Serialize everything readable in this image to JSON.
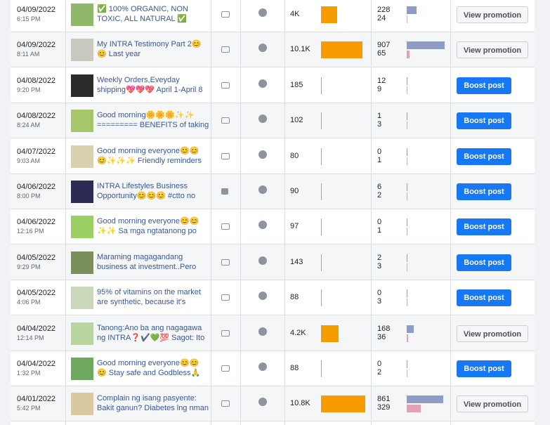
{
  "rows": [
    {
      "date": "04/09/2022",
      "time": "6:15 PM",
      "title": [
        "✅ 100% ORGANIC, NON",
        "TOXIC, ALL NATURAL ✅"
      ],
      "post_type": "photo",
      "reach": {
        "value": 4000,
        "label": "4K"
      },
      "engagement": [
        228,
        24
      ],
      "action": "View promotion"
    },
    {
      "date": "04/09/2022",
      "time": "8:11 AM",
      "title": [
        "My INTRA Testimony Part 2😊",
        "😊 Last year"
      ],
      "post_type": "photo",
      "reach": {
        "value": 10100,
        "label": "10.1K"
      },
      "engagement": [
        907,
        65
      ],
      "action": "View promotion"
    },
    {
      "date": "04/08/2022",
      "time": "9:20 PM",
      "title": [
        "Weekly Orders,Eveyday",
        "shipping💖💖💖 April 1-April 8"
      ],
      "post_type": "photo",
      "reach": {
        "value": 185,
        "label": "185"
      },
      "engagement": [
        12,
        9
      ],
      "action": "Boost post"
    },
    {
      "date": "04/08/2022",
      "time": "8:24 AM",
      "title": [
        "Good morning🌼🌼🌼✨✨",
        "========= BENEFITS of taking"
      ],
      "post_type": "photo",
      "reach": {
        "value": 102,
        "label": "102"
      },
      "engagement": [
        1,
        3
      ],
      "action": "Boost post"
    },
    {
      "date": "04/07/2022",
      "time": "9:03 AM",
      "title": [
        "Good morning everyone😊😊",
        "😊✨✨✨ Friendly reminders"
      ],
      "post_type": "photo",
      "reach": {
        "value": 80,
        "label": "80"
      },
      "engagement": [
        0,
        1
      ],
      "action": "Boost post"
    },
    {
      "date": "04/06/2022",
      "time": "8:00 PM",
      "title": [
        "INTRA Lifestyles Business",
        "Opportunity😊😊😊 #ctto no"
      ],
      "post_type": "video",
      "reach": {
        "value": 90,
        "label": "90"
      },
      "engagement": [
        6,
        2
      ],
      "action": "Boost post"
    },
    {
      "date": "04/06/2022",
      "time": "12:16 PM",
      "title": [
        "Good morning everyone😊😊",
        "✨✨ Sa mga ngtatanong po"
      ],
      "post_type": "photo",
      "reach": {
        "value": 97,
        "label": "97"
      },
      "engagement": [
        0,
        1
      ],
      "action": "Boost post"
    },
    {
      "date": "04/05/2022",
      "time": "9:29 PM",
      "title": [
        "Maraming magagandang",
        "business at investment..Pero"
      ],
      "post_type": "photo",
      "reach": {
        "value": 143,
        "label": "143"
      },
      "engagement": [
        2,
        3
      ],
      "action": "Boost post"
    },
    {
      "date": "04/05/2022",
      "time": "4:06 PM",
      "title": [
        "95% of vitamins on the market",
        "are synthetic, because it's"
      ],
      "post_type": "photo",
      "reach": {
        "value": 88,
        "label": "88"
      },
      "engagement": [
        0,
        3
      ],
      "action": "Boost post"
    },
    {
      "date": "04/04/2022",
      "time": "12:14 PM",
      "title": [
        "Tanong:Ano ba ang nagagawa",
        "ng INTRA❓✔️💚💯 Sagot: Ito"
      ],
      "post_type": "photo",
      "reach": {
        "value": 4200,
        "label": "4.2K"
      },
      "engagement": [
        168,
        36
      ],
      "action": "View promotion"
    },
    {
      "date": "04/04/2022",
      "time": "1:32 PM",
      "title": [
        "Good morning everyone😊😊",
        "😊 Stay safe and Godbless🙏"
      ],
      "post_type": "photo",
      "reach": {
        "value": 88,
        "label": "88"
      },
      "engagement": [
        0,
        2
      ],
      "action": "Boost post"
    },
    {
      "date": "04/01/2022",
      "time": "5:42 PM",
      "title": [
        "Complain ng isang pasyente:",
        "Bakit ganun? Diabetes lng nman"
      ],
      "post_type": "photo",
      "reach": {
        "value": 10800,
        "label": "10.8K"
      },
      "engagement": [
        861,
        329
      ],
      "action": "View promotion"
    }
  ]
}
